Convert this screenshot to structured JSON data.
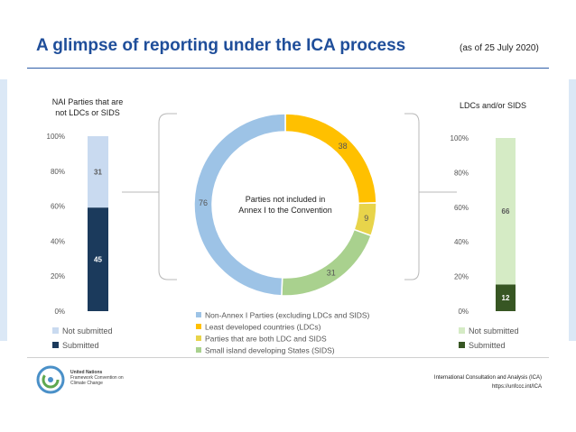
{
  "header": {
    "title": "A glimpse of reporting under the ICA process",
    "as_of": "(as of 25 July 2020)"
  },
  "footer": {
    "line1": "International Consultation and Analysis (ICA)",
    "line2": "https://unfccc.int/ICA"
  },
  "logo": {
    "text_lines": [
      "United Nations",
      "Framework Convention on",
      "Climate Change"
    ]
  },
  "colors": {
    "title": "#1f4e9a",
    "blue_light": "#c9daf0",
    "navy": "#1b3a5c",
    "donut_blue": "#9dc3e6",
    "donut_gold": "#ffc000",
    "donut_yellow": "#e8d44a",
    "donut_green": "#a9d18e",
    "green_light": "#d5ebc5",
    "green_dark": "#375623"
  },
  "chart_data": [
    {
      "type": "bar",
      "stacked": true,
      "title": "NAI Parties that are not LDCs or SIDS",
      "ytick_labels": [
        "0%",
        "20%",
        "40%",
        "60%",
        "80%",
        "100%"
      ],
      "ylim": [
        0,
        100
      ],
      "series": [
        {
          "name": "Submitted",
          "values": [
            45
          ],
          "color": "#1b3a5c",
          "label_color": "#ffffff"
        },
        {
          "name": "Not submitted",
          "values": [
            31
          ],
          "color": "#c9daf0",
          "label_color": "#595959"
        }
      ],
      "legend": [
        "Not submitted",
        "Submitted"
      ],
      "legend_colors": [
        "#c9daf0",
        "#1b3a5c"
      ]
    },
    {
      "type": "pie",
      "donut": true,
      "center_label": [
        "Parties not included in",
        "Annex I to the Convention"
      ],
      "slices": [
        {
          "label": "Least developed countries (LDCs)",
          "value": 38,
          "color": "#ffc000"
        },
        {
          "label": "Parties that are both LDC and SIDS",
          "value": 9,
          "color": "#e8d44a"
        },
        {
          "label": "Small island developing States (SIDS)",
          "value": 31,
          "color": "#a9d18e"
        },
        {
          "label": "Non-Annex I Parties (excluding LDCs and SIDS)",
          "value": 76,
          "color": "#9dc3e6"
        }
      ],
      "legend": [
        {
          "label": "Non-Annex I Parties (excluding LDCs and SIDS)",
          "color": "#9dc3e6"
        },
        {
          "label": "Least developed countries (LDCs)",
          "color": "#ffc000"
        },
        {
          "label": "Parties that are both LDC and SIDS",
          "color": "#e8d44a"
        },
        {
          "label": "Small island developing States (SIDS)",
          "color": "#a9d18e"
        }
      ]
    },
    {
      "type": "bar",
      "stacked": true,
      "title": "LDCs and/or SIDS",
      "ytick_labels": [
        "0%",
        "20%",
        "40%",
        "60%",
        "80%",
        "100%"
      ],
      "ylim": [
        0,
        100
      ],
      "series": [
        {
          "name": "Submitted",
          "values": [
            12
          ],
          "color": "#375623",
          "label_color": "#ffffff"
        },
        {
          "name": "Not submitted",
          "values": [
            66
          ],
          "color": "#d5ebc5",
          "label_color": "#595959"
        }
      ],
      "legend": [
        "Not submitted",
        "Submitted"
      ],
      "legend_colors": [
        "#d5ebc5",
        "#375623"
      ]
    }
  ]
}
